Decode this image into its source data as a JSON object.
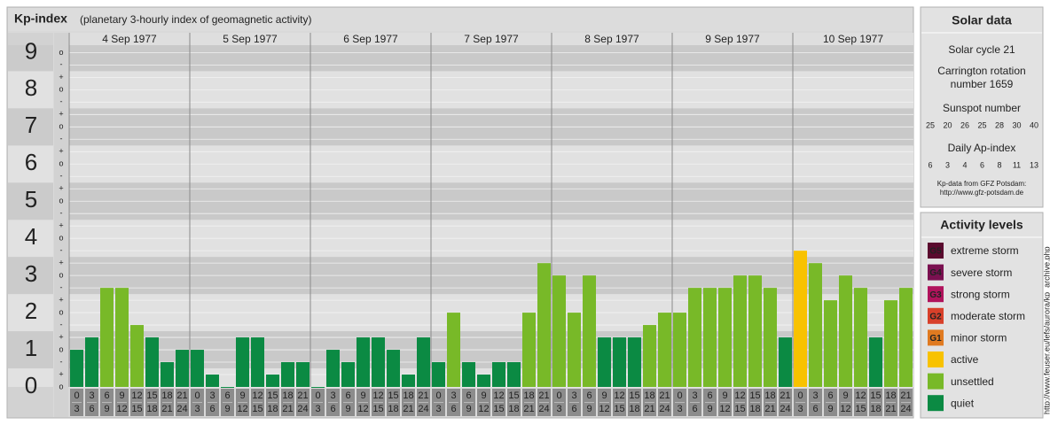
{
  "chart_data": {
    "type": "bar",
    "title": "Kp-index",
    "subtitle": "(planetary 3-hourly index of geomagnetic activity)",
    "days": [
      "4 Sep 1977",
      "5 Sep 1977",
      "6 Sep 1977",
      "7 Sep 1977",
      "8 Sep 1977",
      "9 Sep 1977",
      "10 Sep 1977"
    ],
    "hour_starts": [
      "0",
      "3",
      "6",
      "9",
      "12",
      "15",
      "18",
      "21"
    ],
    "hour_ends": [
      "3",
      "6",
      "9",
      "12",
      "15",
      "18",
      "21",
      "24"
    ],
    "values": [
      1,
      1.333,
      2.667,
      2.667,
      1.667,
      1.333,
      0.667,
      1,
      1,
      0.333,
      0,
      1.333,
      1.333,
      0.333,
      0.667,
      0.667,
      0,
      1,
      0.667,
      1.333,
      1.333,
      1,
      0.333,
      1.333,
      0.667,
      2,
      0.667,
      0.333,
      0.667,
      0.667,
      2,
      3.333,
      3,
      2,
      3,
      1.333,
      1.333,
      1.333,
      1.667,
      2,
      2,
      2.667,
      2.667,
      2.667,
      3,
      3,
      2.667,
      1.333,
      3.667,
      3.333,
      2.333,
      3,
      2.667,
      1.333,
      2.333,
      2.667
    ],
    "colors": [
      "#0b8a43",
      "#0b8a43",
      "#78b928",
      "#78b928",
      "#78b928",
      "#0b8a43",
      "#0b8a43",
      "#0b8a43",
      "#0b8a43",
      "#0b8a43",
      "#0b8a43",
      "#0b8a43",
      "#0b8a43",
      "#0b8a43",
      "#0b8a43",
      "#0b8a43",
      "#0b8a43",
      "#0b8a43",
      "#0b8a43",
      "#0b8a43",
      "#0b8a43",
      "#0b8a43",
      "#0b8a43",
      "#0b8a43",
      "#0b8a43",
      "#78b928",
      "#0b8a43",
      "#0b8a43",
      "#0b8a43",
      "#0b8a43",
      "#78b928",
      "#78b928",
      "#78b928",
      "#78b928",
      "#78b928",
      "#0b8a43",
      "#0b8a43",
      "#0b8a43",
      "#78b928",
      "#78b928",
      "#78b928",
      "#78b928",
      "#78b928",
      "#78b928",
      "#78b928",
      "#78b928",
      "#78b928",
      "#0b8a43",
      "#f8c200",
      "#78b928",
      "#78b928",
      "#78b928",
      "#78b928",
      "#0b8a43",
      "#78b928",
      "#78b928"
    ],
    "ylim": [
      0,
      9.2
    ],
    "yticks": [
      0,
      1,
      2,
      3,
      4,
      5,
      6,
      7,
      8,
      9
    ],
    "minor_yticks": [
      {
        "value": 0,
        "label": "o"
      },
      {
        "value": 0.333,
        "label": "+"
      },
      {
        "value": 0.667,
        "label": "-"
      },
      {
        "value": 1,
        "label": "o"
      },
      {
        "value": 1.333,
        "label": "+"
      },
      {
        "value": 1.667,
        "label": "-"
      },
      {
        "value": 2,
        "label": "o"
      },
      {
        "value": 2.333,
        "label": "+"
      },
      {
        "value": 2.667,
        "label": "-"
      },
      {
        "value": 3,
        "label": "o"
      },
      {
        "value": 3.333,
        "label": "+"
      },
      {
        "value": 3.667,
        "label": "-"
      },
      {
        "value": 4,
        "label": "o"
      },
      {
        "value": 4.333,
        "label": "+"
      },
      {
        "value": 4.667,
        "label": "-"
      },
      {
        "value": 5,
        "label": "o"
      },
      {
        "value": 5.333,
        "label": "+"
      },
      {
        "value": 5.667,
        "label": "-"
      },
      {
        "value": 6,
        "label": "o"
      },
      {
        "value": 6.333,
        "label": "+"
      },
      {
        "value": 6.667,
        "label": "-"
      },
      {
        "value": 7,
        "label": "o"
      },
      {
        "value": 7.333,
        "label": "+"
      },
      {
        "value": 7.667,
        "label": "-"
      },
      {
        "value": 8,
        "label": "o"
      },
      {
        "value": 8.333,
        "label": "+"
      },
      {
        "value": 8.667,
        "label": "-"
      },
      {
        "value": 9,
        "label": "o"
      }
    ],
    "grid": true,
    "solar": {
      "title": "Solar data",
      "cycle": "Solar cycle 21",
      "carrington_1": "Carrington rotation",
      "carrington_2": "number 1659",
      "sunspot_title": "Sunspot number",
      "sunspot": [
        25,
        20,
        26,
        25,
        28,
        30,
        40
      ],
      "ap_title": "Daily Ap-index",
      "ap": [
        6,
        3,
        4,
        6,
        8,
        11,
        13
      ],
      "source_1": "Kp-data from GFZ Potsdam:",
      "source_2": "http://www.gfz-potsdam.de"
    },
    "legend": {
      "title": "Activity levels",
      "items": [
        {
          "badge": "G5",
          "name": "extreme storm",
          "color": "#5a0a2e"
        },
        {
          "badge": "G4",
          "name": "severe storm",
          "color": "#7a1050"
        },
        {
          "badge": "G3",
          "name": "strong storm",
          "color": "#b0135c"
        },
        {
          "badge": "G2",
          "name": "moderate storm",
          "color": "#d8402a"
        },
        {
          "badge": "G1",
          "name": "minor storm",
          "color": "#e07a20"
        },
        {
          "name": "active",
          "color": "#f8c200"
        },
        {
          "name": "unsettled",
          "color": "#78b928"
        },
        {
          "name": "quiet",
          "color": "#0b8a43"
        }
      ]
    },
    "credit": "http://www.feuser.eu/lefs/aurora/kp_archive.php"
  }
}
